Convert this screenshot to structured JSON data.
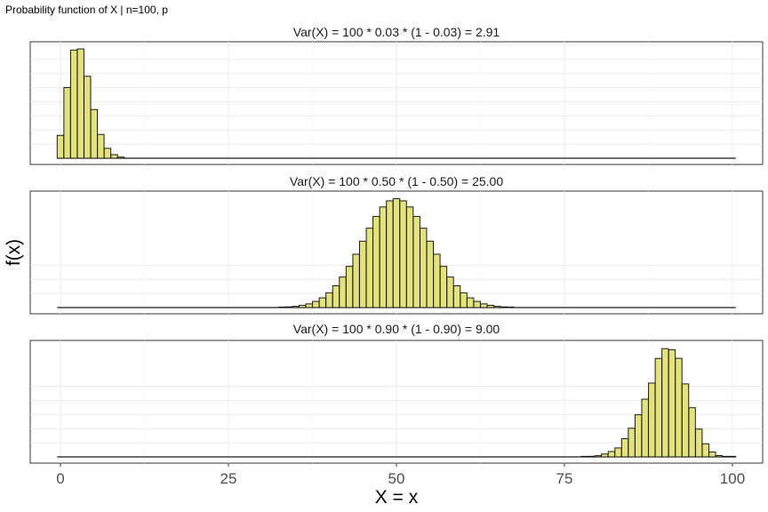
{
  "header": {
    "title": "Probability function of X | n=100, p"
  },
  "chart_data": {
    "type": "bar",
    "n": 100,
    "xlabel": "X = x",
    "ylabel": "f(x)",
    "xlim": [
      0,
      100
    ],
    "xticks": [
      0,
      25,
      50,
      75,
      100
    ],
    "xtick_labels": [
      "0",
      "25",
      "50",
      "75",
      "100"
    ],
    "bar_fill": "#e3e37a",
    "bar_stroke": "#1a1a1a",
    "y_tick_labels_shown": false,
    "panels": [
      {
        "title": "Var(X) = 100 * 0.03 * (1 - 0.03) = 2.91",
        "p": 0.03,
        "ylim": [
          0,
          0.235
        ],
        "x": [
          0,
          1,
          2,
          3,
          4,
          5,
          6,
          7,
          8,
          9
        ],
        "values": [
          0.0476,
          0.1471,
          0.2252,
          0.2275,
          0.1706,
          0.1013,
          0.0496,
          0.0206,
          0.0074,
          0.0023
        ]
      },
      {
        "title": "Var(X) = 100 * 0.50 * (1 - 0.50) = 25.00",
        "p": 0.5,
        "ylim": [
          0,
          0.0825
        ],
        "x": [
          33,
          34,
          35,
          36,
          37,
          38,
          39,
          40,
          41,
          42,
          43,
          44,
          45,
          46,
          47,
          48,
          49,
          50,
          51,
          52,
          53,
          54,
          55,
          56,
          57,
          58,
          59,
          60,
          61,
          62,
          63,
          64,
          65,
          66,
          67
        ],
        "values": [
          0.0002,
          0.0005,
          0.0009,
          0.0016,
          0.0027,
          0.0045,
          0.0071,
          0.0108,
          0.0159,
          0.0223,
          0.0301,
          0.039,
          0.0485,
          0.058,
          0.0666,
          0.0735,
          0.078,
          0.0796,
          0.078,
          0.0735,
          0.0666,
          0.058,
          0.0485,
          0.039,
          0.0301,
          0.0223,
          0.0159,
          0.0108,
          0.0071,
          0.0045,
          0.0027,
          0.0016,
          0.0009,
          0.0005,
          0.0002
        ]
      },
      {
        "title": "Var(X) = 100 * 0.90 * (1 - 0.90) = 9.00",
        "p": 0.9,
        "ylim": [
          0,
          0.1375
        ],
        "x": [
          78,
          79,
          80,
          81,
          82,
          83,
          84,
          85,
          86,
          87,
          88,
          89,
          90,
          91,
          92,
          93,
          94,
          95,
          96,
          97,
          98,
          99,
          100
        ],
        "values": [
          0.0003,
          0.0007,
          0.0015,
          0.0035,
          0.0065,
          0.0109,
          0.0222,
          0.0349,
          0.0513,
          0.0703,
          0.0899,
          0.1199,
          0.1319,
          0.1304,
          0.1201,
          0.0889,
          0.0599,
          0.0339,
          0.0159,
          0.0059,
          0.0016,
          0.0003,
          3e-05
        ]
      }
    ]
  }
}
